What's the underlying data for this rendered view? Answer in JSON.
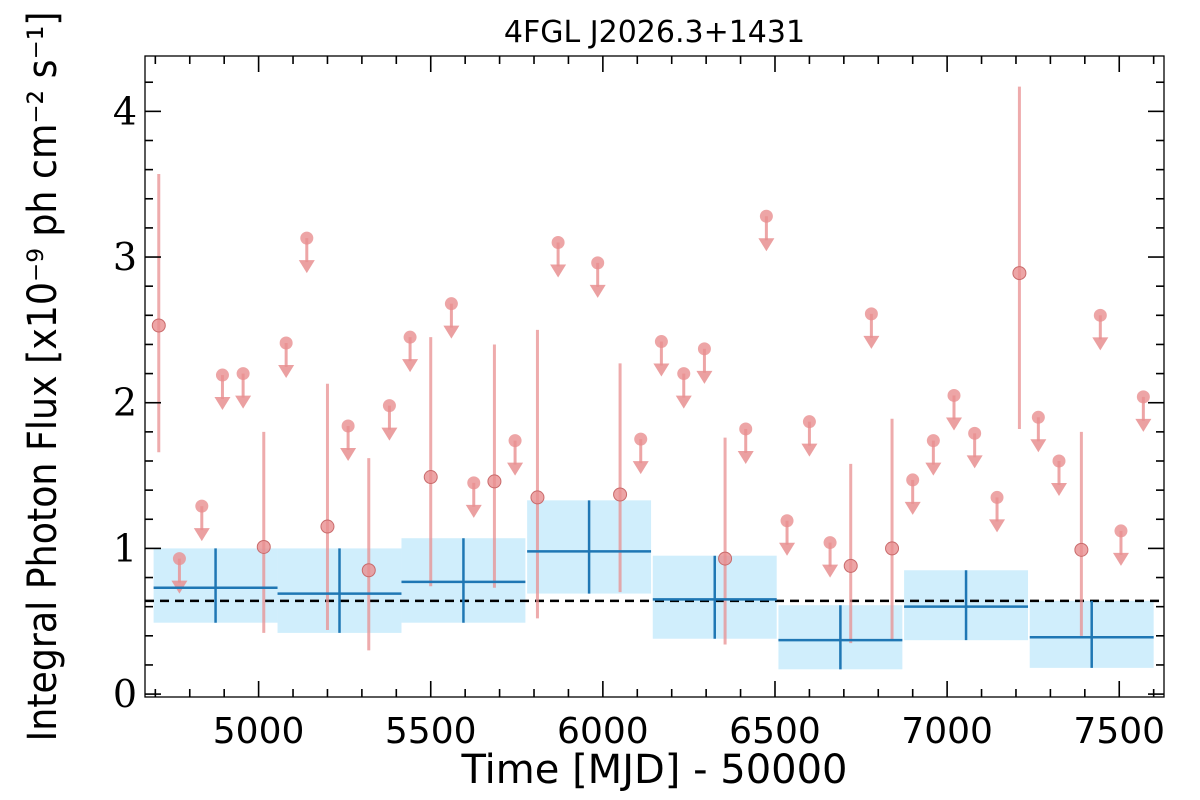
{
  "chart_data": {
    "type": "scatter",
    "title": "4FGL J2026.3+1431",
    "xlabel": "Time [MJD] - 50000",
    "ylabel": "Integral Photon Flux [x10⁻⁹ ph cm⁻² s⁻¹]",
    "xlim": [
      4670,
      7630
    ],
    "ylim": [
      -0.02,
      4.38
    ],
    "xticks": [
      5000,
      5500,
      6000,
      6500,
      7000,
      7500
    ],
    "yticks": [
      0,
      1,
      2,
      3,
      4
    ],
    "grid": false,
    "colors": {
      "short_bins": "#e88f90",
      "long_bins": "#1f77b4",
      "band": "#d0eefc",
      "mean_line": "#000000"
    },
    "average_flux": 0.64,
    "long_bins": [
      {
        "x": 4875,
        "xerr": 180,
        "y": 0.73,
        "ylow": 0.49,
        "yhigh": 1.0
      },
      {
        "x": 5235,
        "xerr": 180,
        "y": 0.69,
        "ylow": 0.42,
        "yhigh": 1.0
      },
      {
        "x": 5595,
        "xerr": 180,
        "y": 0.77,
        "ylow": 0.49,
        "yhigh": 1.07
      },
      {
        "x": 5960,
        "xerr": 180,
        "y": 0.98,
        "ylow": 0.69,
        "yhigh": 1.33
      },
      {
        "x": 6325,
        "xerr": 180,
        "y": 0.65,
        "ylow": 0.38,
        "yhigh": 0.95
      },
      {
        "x": 6690,
        "xerr": 180,
        "y": 0.37,
        "ylow": 0.17,
        "yhigh": 0.61
      },
      {
        "x": 7055,
        "xerr": 180,
        "y": 0.6,
        "ylow": 0.37,
        "yhigh": 0.85
      },
      {
        "x": 7420,
        "xerr": 180,
        "y": 0.39,
        "ylow": 0.18,
        "yhigh": 0.64
      }
    ],
    "short_detections": [
      {
        "x": 4710,
        "y": 2.53,
        "ylow": 1.66,
        "yhigh": 3.57
      },
      {
        "x": 5015,
        "y": 1.01,
        "ylow": 0.42,
        "yhigh": 1.8
      },
      {
        "x": 5200,
        "y": 1.15,
        "ylow": 0.44,
        "yhigh": 2.13
      },
      {
        "x": 5320,
        "y": 0.85,
        "ylow": 0.3,
        "yhigh": 1.62
      },
      {
        "x": 5500,
        "y": 1.49,
        "ylow": 0.74,
        "yhigh": 2.45
      },
      {
        "x": 5685,
        "y": 1.46,
        "ylow": 0.73,
        "yhigh": 2.4
      },
      {
        "x": 5810,
        "y": 1.35,
        "ylow": 0.52,
        "yhigh": 2.5
      },
      {
        "x": 6050,
        "y": 1.37,
        "ylow": 0.7,
        "yhigh": 2.27
      },
      {
        "x": 6355,
        "y": 0.93,
        "ylow": 0.34,
        "yhigh": 1.76
      },
      {
        "x": 6720,
        "y": 0.88,
        "ylow": 0.35,
        "yhigh": 1.58
      },
      {
        "x": 6840,
        "y": 1.0,
        "ylow": 0.37,
        "yhigh": 1.89
      },
      {
        "x": 7210,
        "y": 2.89,
        "ylow": 1.82,
        "yhigh": 4.17
      },
      {
        "x": 7390,
        "y": 0.99,
        "ylow": 0.4,
        "yhigh": 1.8
      }
    ],
    "short_upper_limits": [
      {
        "x": 4770,
        "y": 0.93
      },
      {
        "x": 4835,
        "y": 1.29
      },
      {
        "x": 4895,
        "y": 2.19
      },
      {
        "x": 4955,
        "y": 2.2
      },
      {
        "x": 5080,
        "y": 2.41
      },
      {
        "x": 5140,
        "y": 3.13
      },
      {
        "x": 5260,
        "y": 1.84
      },
      {
        "x": 5380,
        "y": 1.98
      },
      {
        "x": 5440,
        "y": 2.45
      },
      {
        "x": 5560,
        "y": 2.68
      },
      {
        "x": 5625,
        "y": 1.45
      },
      {
        "x": 5745,
        "y": 1.74
      },
      {
        "x": 5870,
        "y": 3.1
      },
      {
        "x": 5985,
        "y": 2.96
      },
      {
        "x": 6110,
        "y": 1.75
      },
      {
        "x": 6170,
        "y": 2.42
      },
      {
        "x": 6235,
        "y": 2.2
      },
      {
        "x": 6295,
        "y": 2.37
      },
      {
        "x": 6415,
        "y": 1.82
      },
      {
        "x": 6475,
        "y": 3.28
      },
      {
        "x": 6535,
        "y": 1.19
      },
      {
        "x": 6600,
        "y": 1.87
      },
      {
        "x": 6660,
        "y": 1.04
      },
      {
        "x": 6780,
        "y": 2.61
      },
      {
        "x": 6900,
        "y": 1.47
      },
      {
        "x": 6960,
        "y": 1.74
      },
      {
        "x": 7020,
        "y": 2.05
      },
      {
        "x": 7080,
        "y": 1.79
      },
      {
        "x": 7145,
        "y": 1.35
      },
      {
        "x": 7265,
        "y": 1.9
      },
      {
        "x": 7325,
        "y": 1.6
      },
      {
        "x": 7445,
        "y": 2.6
      },
      {
        "x": 7505,
        "y": 1.12
      },
      {
        "x": 7570,
        "y": 2.04
      }
    ]
  }
}
